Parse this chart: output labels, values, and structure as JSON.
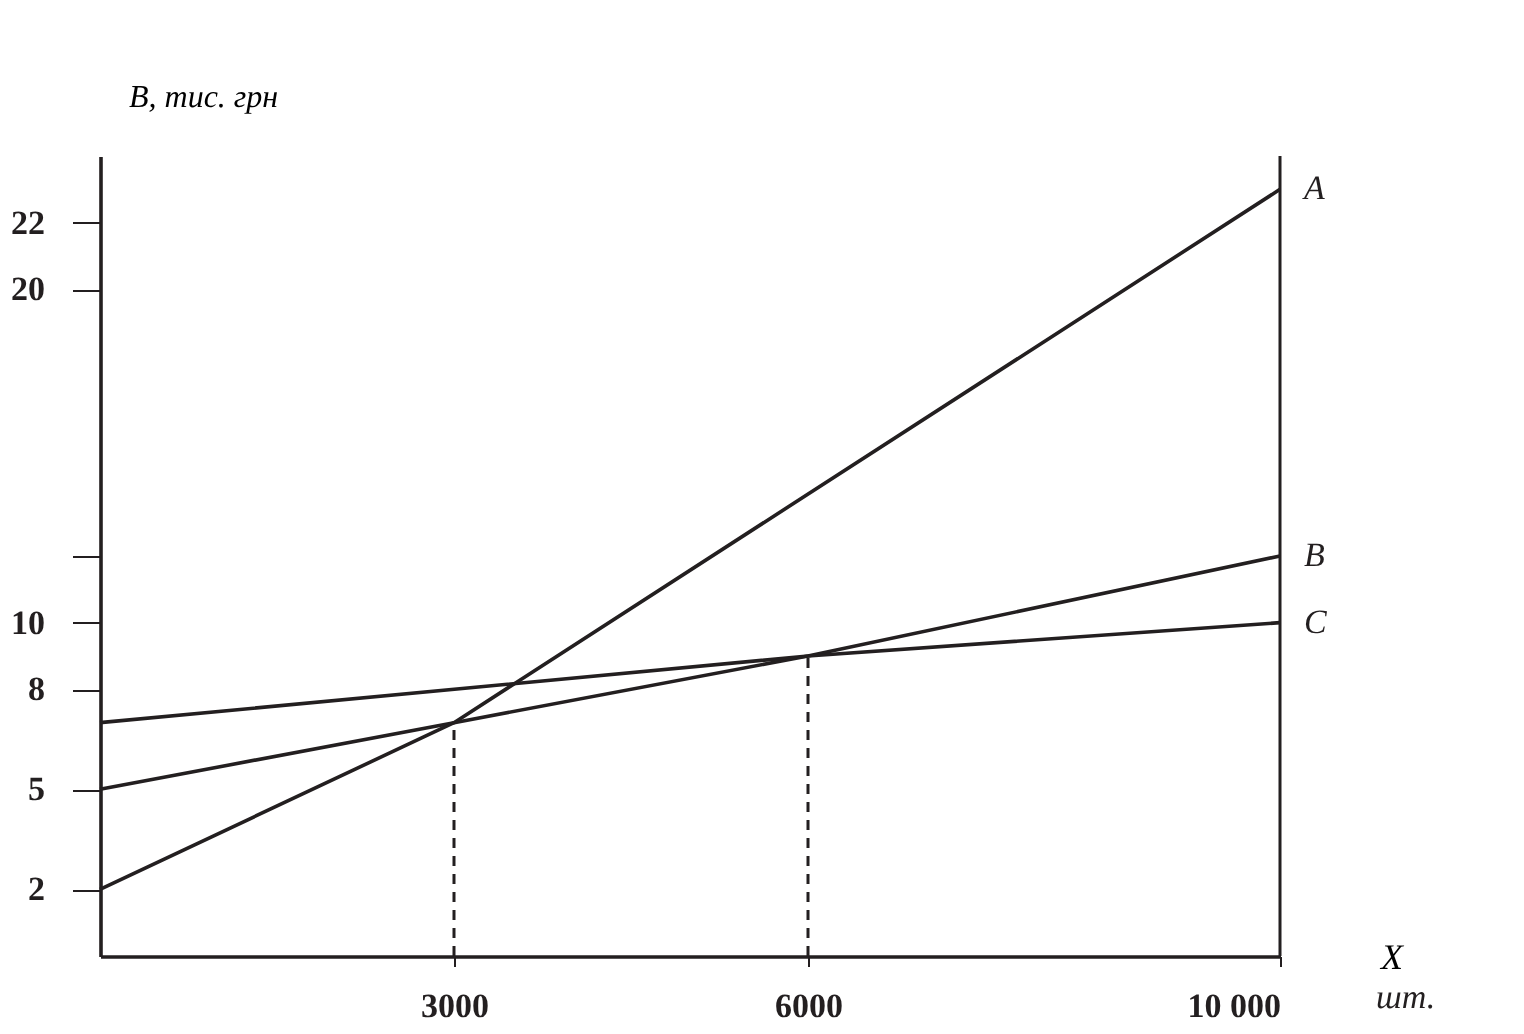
{
  "chart_data": {
    "type": "line",
    "ylabel": "B, тис. грн",
    "xlabel": "X",
    "annotations": [
      "шт."
    ],
    "xlim": [
      0,
      10000
    ],
    "xticks": [
      3000,
      6000,
      {
        "value": 10000,
        "label": "10 000"
      }
    ],
    "ylim": [
      0,
      24
    ],
    "yticks": [
      2,
      5,
      8,
      10,
      {
        "value": 12,
        "label": null
      },
      20,
      22
    ],
    "grid": false,
    "marker": "none",
    "series": [
      {
        "name": "A",
        "color": "#231f20",
        "x": [
          0,
          3000,
          10000
        ],
        "values": [
          2,
          7,
          23
        ]
      },
      {
        "name": "B",
        "color": "#231f20",
        "x": [
          0,
          3000,
          6000,
          10000
        ],
        "values": [
          5,
          7,
          9,
          12
        ]
      },
      {
        "name": "C",
        "color": "#231f20",
        "x": [
          0,
          6000,
          10000
        ],
        "values": [
          7,
          9,
          10
        ]
      }
    ],
    "ref_lines": [
      {
        "axis": "x",
        "value": 3000,
        "line_style": "dashed",
        "color": "#231f20"
      },
      {
        "axis": "x",
        "value": 6000,
        "line_style": "dashed",
        "color": "#231f20"
      },
      {
        "axis": "x",
        "value": 10000,
        "line_style": "solid",
        "color": "#231f20"
      }
    ]
  }
}
